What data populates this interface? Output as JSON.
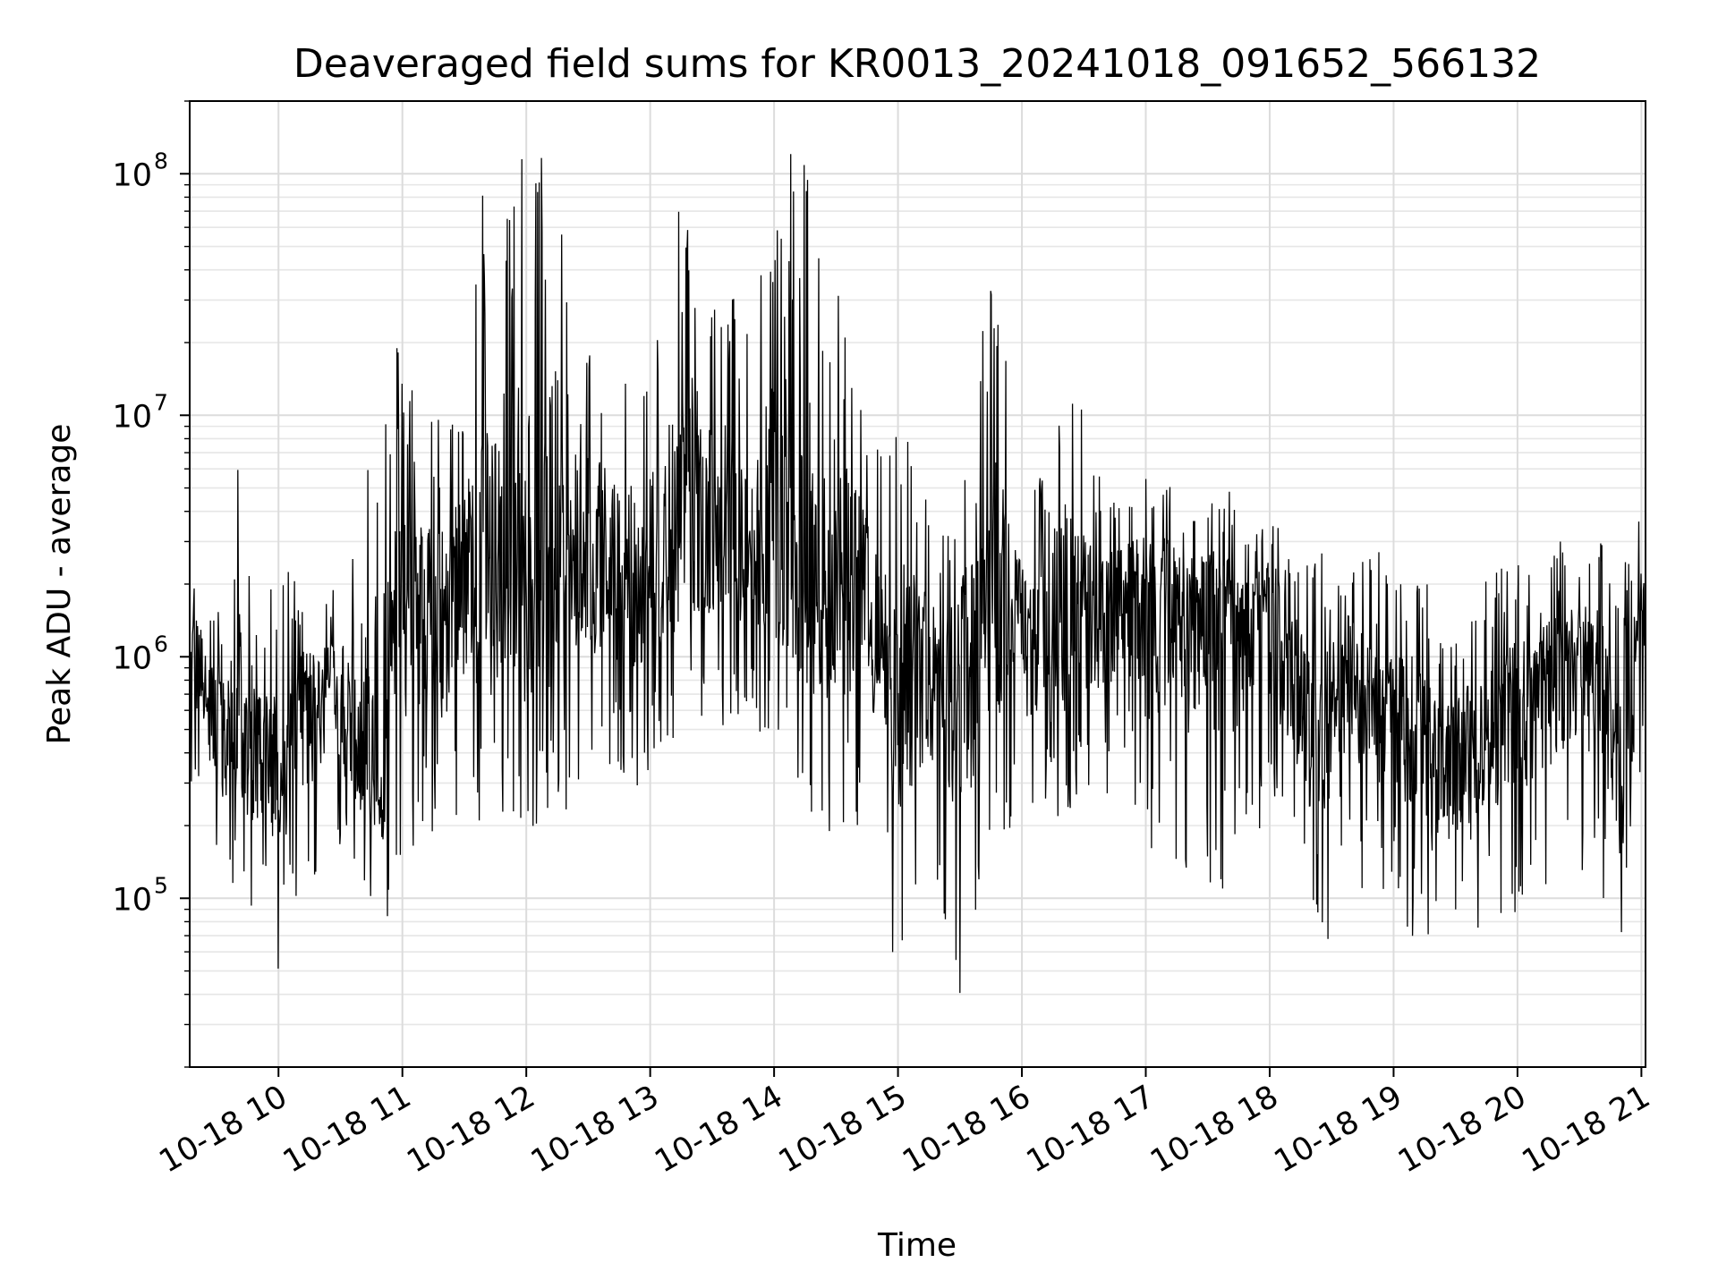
{
  "chart_data": {
    "type": "line",
    "title": "Deaveraged field sums for KR0013_20241018_091652_566132",
    "xlabel": "Time",
    "ylabel": "Peak ADU - average",
    "yscale": "log",
    "xlim": [
      "2024-10-18 09:17",
      "2024-10-18 21:02"
    ],
    "ylim": [
      20000,
      200000000
    ],
    "grid": true,
    "line_color": "#000000",
    "x_ticks": [
      {
        "value": "2024-10-18 10:00",
        "label": "10-18 10"
      },
      {
        "value": "2024-10-18 11:00",
        "label": "10-18 11"
      },
      {
        "value": "2024-10-18 12:00",
        "label": "10-18 12"
      },
      {
        "value": "2024-10-18 13:00",
        "label": "10-18 13"
      },
      {
        "value": "2024-10-18 14:00",
        "label": "10-18 14"
      },
      {
        "value": "2024-10-18 15:00",
        "label": "10-18 15"
      },
      {
        "value": "2024-10-18 16:00",
        "label": "10-18 16"
      },
      {
        "value": "2024-10-18 17:00",
        "label": "10-18 17"
      },
      {
        "value": "2024-10-18 18:00",
        "label": "10-18 18"
      },
      {
        "value": "2024-10-18 19:00",
        "label": "10-18 19"
      },
      {
        "value": "2024-10-18 20:00",
        "label": "10-18 20"
      },
      {
        "value": "2024-10-18 21:00",
        "label": "10-18 21"
      }
    ],
    "y_ticks": [
      {
        "value": 100000,
        "base": "10",
        "exp": "5"
      },
      {
        "value": 1000000,
        "base": "10",
        "exp": "6"
      },
      {
        "value": 10000000,
        "base": "10",
        "exp": "7"
      },
      {
        "value": 100000000,
        "base": "10",
        "exp": "8"
      }
    ],
    "series": [
      {
        "x": [
          "2024-10-18 09:17",
          "2024-10-18 09:25",
          "2024-10-18 09:33",
          "2024-10-18 09:42",
          "2024-10-18 09:50",
          "2024-10-18 10:00",
          "2024-10-18 10:10",
          "2024-10-18 10:20",
          "2024-10-18 10:30",
          "2024-10-18 10:40",
          "2024-10-18 10:50",
          "2024-10-18 11:00",
          "2024-10-18 11:10",
          "2024-10-18 11:20",
          "2024-10-18 11:30",
          "2024-10-18 11:40",
          "2024-10-18 11:50",
          "2024-10-18 12:00",
          "2024-10-18 12:10",
          "2024-10-18 12:20",
          "2024-10-18 12:30",
          "2024-10-18 12:40",
          "2024-10-18 12:50",
          "2024-10-18 13:00",
          "2024-10-18 13:10",
          "2024-10-18 13:20",
          "2024-10-18 13:30",
          "2024-10-18 13:40",
          "2024-10-18 13:50",
          "2024-10-18 14:00",
          "2024-10-18 14:10",
          "2024-10-18 14:20",
          "2024-10-18 14:30",
          "2024-10-18 14:40",
          "2024-10-18 14:50",
          "2024-10-18 15:00",
          "2024-10-18 15:10",
          "2024-10-18 15:20",
          "2024-10-18 15:30",
          "2024-10-18 15:40",
          "2024-10-18 15:50",
          "2024-10-18 16:00",
          "2024-10-18 16:10",
          "2024-10-18 16:20",
          "2024-10-18 16:30",
          "2024-10-18 16:40",
          "2024-10-18 16:50",
          "2024-10-18 17:00",
          "2024-10-18 17:10",
          "2024-10-18 17:20",
          "2024-10-18 17:30",
          "2024-10-18 17:40",
          "2024-10-18 17:50",
          "2024-10-18 18:00",
          "2024-10-18 18:10",
          "2024-10-18 18:20",
          "2024-10-18 18:30",
          "2024-10-18 18:40",
          "2024-10-18 18:50",
          "2024-10-18 19:00",
          "2024-10-18 19:10",
          "2024-10-18 19:20",
          "2024-10-18 19:30",
          "2024-10-18 19:40",
          "2024-10-18 19:50",
          "2024-10-18 20:00",
          "2024-10-18 20:10",
          "2024-10-18 20:20",
          "2024-10-18 20:30",
          "2024-10-18 20:40",
          "2024-10-18 20:50",
          "2024-10-18 21:00",
          "2024-10-18 21:02"
        ],
        "y": [
          2000000,
          600000,
          500000,
          400000,
          450000,
          400000,
          500000,
          800000,
          700000,
          400000,
          300000,
          1500000,
          1800000,
          1500000,
          2500000,
          1500000,
          2500000,
          2500000,
          3000000,
          3500000,
          3000000,
          2000000,
          2200000,
          2500000,
          2800000,
          3000000,
          3500000,
          3000000,
          2500000,
          3000000,
          2500000,
          1500000,
          2000000,
          2000000,
          1200000,
          800000,
          1000000,
          700000,
          800000,
          1200000,
          1500000,
          1500000,
          1000000,
          1200000,
          1500000,
          1500000,
          2000000,
          2000000,
          1800000,
          1500000,
          1800000,
          1500000,
          1500000,
          1800000,
          1200000,
          500000,
          600000,
          1000000,
          800000,
          600000,
          500000,
          300000,
          400000,
          400000,
          600000,
          600000,
          900000,
          900000,
          1000000,
          900000,
          300000,
          1600000,
          1600000
        ],
        "upper": [
          4000000,
          1800000,
          1500000,
          9500000,
          1200000,
          2500000,
          2500000,
          2200000,
          2000000,
          8500000,
          21000000,
          21000000,
          12000000,
          10000000,
          11000000,
          120000000,
          140000000,
          130000000,
          125000000,
          80000000,
          30000000,
          25000000,
          15000000,
          15000000,
          50000000,
          125000000,
          30000000,
          35000000,
          30000000,
          90000000,
          140000000,
          130000000,
          45000000,
          15000000,
          8000000,
          10000000,
          7000000,
          3500000,
          5000000,
          55000000,
          40000000,
          4000000,
          6000000,
          25000000,
          10000000,
          5000000,
          5000000,
          5500000,
          6000000,
          5000000,
          5000000,
          5000000,
          3000000,
          4000000,
          3000000,
          3000000,
          2500000,
          2800000,
          3000000,
          2500000,
          2800000,
          1800000,
          1500000,
          2000000,
          2500000,
          2500000,
          2000000,
          3000000,
          3000000,
          3000000,
          2200000,
          4000000,
          3000000
        ],
        "lower": [
          300000,
          150000,
          120000,
          100000,
          80000,
          50000,
          90000,
          120000,
          150000,
          110000,
          60000,
          120000,
          150000,
          150000,
          150000,
          200000,
          200000,
          110000,
          120000,
          200000,
          250000,
          300000,
          300000,
          280000,
          400000,
          550000,
          400000,
          500000,
          500000,
          350000,
          300000,
          200000,
          180000,
          200000,
          150000,
          35000,
          90000,
          100000,
          40000,
          80000,
          200000,
          150000,
          250000,
          200000,
          300000,
          250000,
          350000,
          110000,
          150000,
          120000,
          100000,
          100000,
          150000,
          180000,
          120000,
          80000,
          60000,
          100000,
          100000,
          100000,
          60000,
          60000,
          70000,
          60000,
          70000,
          90000,
          90000,
          110000,
          100000,
          100000,
          45000,
          300000,
          900000
        ]
      }
    ]
  }
}
